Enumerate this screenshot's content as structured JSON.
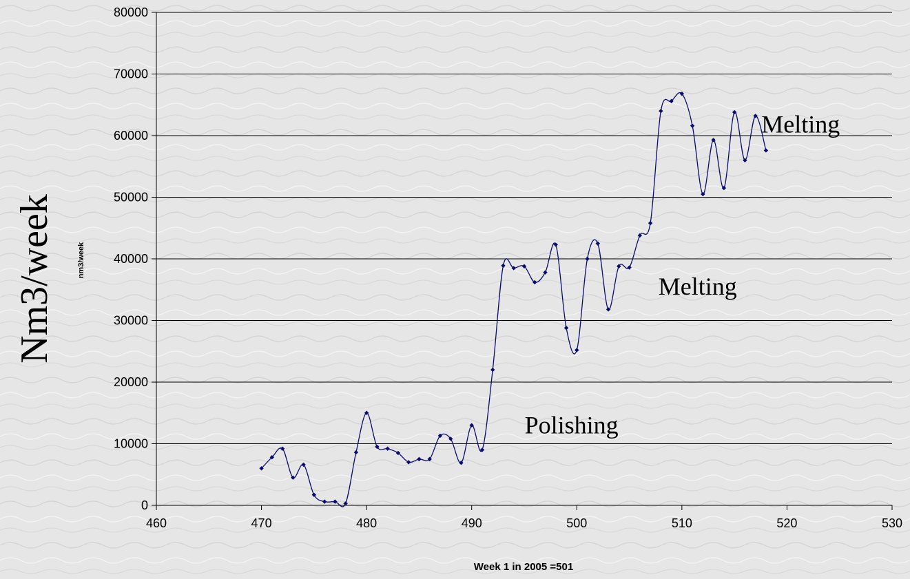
{
  "chart_data": {
    "type": "line",
    "title": "",
    "xlabel": "Week 1 in 2005 =501",
    "ylabel": "nm3/week",
    "side_label": "Nm3/week",
    "xlim": [
      460,
      530
    ],
    "ylim": [
      0,
      80000
    ],
    "x_ticks": [
      460,
      470,
      480,
      490,
      500,
      510,
      520,
      530
    ],
    "y_ticks": [
      0,
      10000,
      20000,
      30000,
      40000,
      50000,
      60000,
      70000,
      80000
    ],
    "grid": "horizontal",
    "line_color": "#0b0b6e",
    "series": [
      {
        "x": [
          470,
          471,
          472,
          473,
          474,
          475,
          476,
          477,
          478,
          479,
          480,
          481,
          482,
          483,
          484,
          485,
          486,
          487,
          488,
          489,
          490,
          491,
          492,
          493,
          494,
          495,
          496,
          497,
          498,
          499,
          500,
          501,
          502,
          503,
          504,
          505,
          506,
          507,
          508,
          509,
          510,
          511,
          512,
          513,
          514,
          515,
          516,
          517,
          518
        ],
        "y": [
          6000,
          7800,
          9200,
          4500,
          6600,
          1700,
          600,
          600,
          300,
          8600,
          15000,
          9500,
          9200,
          8500,
          7000,
          7500,
          7500,
          11300,
          10800,
          6900,
          13000,
          9000,
          22000,
          38900,
          38500,
          38800,
          36200,
          37800,
          42300,
          28800,
          25200,
          40000,
          42500,
          31800,
          38800,
          38600,
          43800,
          45800,
          64000,
          65600,
          66800,
          61600,
          50500,
          59300,
          51500,
          63800,
          56000,
          63200,
          57600
        ]
      }
    ],
    "annotations": [
      {
        "text": "Melting",
        "x": 521.3,
        "y": 60500
      },
      {
        "text": "Melting",
        "x": 511.5,
        "y": 34200
      },
      {
        "text": "Polishing",
        "x": 499.5,
        "y": 11700
      }
    ]
  }
}
